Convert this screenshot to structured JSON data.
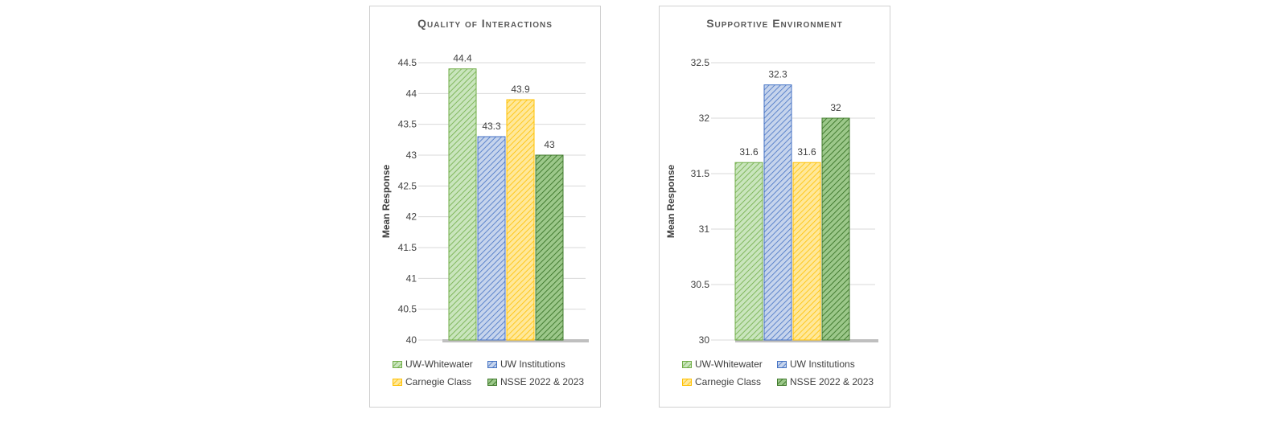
{
  "series_styles": [
    {
      "name": "UW-Whitewater",
      "fill": "#c9e5bd",
      "stroke": "#70ad47",
      "hatch": "#70ad47"
    },
    {
      "name": "UW Institutions",
      "fill": "#c6d4ec",
      "stroke": "#4472c4",
      "hatch": "#4472c4"
    },
    {
      "name": "Carnegie Class",
      "fill": "#ffe89a",
      "stroke": "#ffc000",
      "hatch": "#ffc000"
    },
    {
      "name": "NSSE 2022 & 2023",
      "fill": "#9cc88a",
      "stroke": "#3f7a2b",
      "hatch": "#2f6b1d"
    }
  ],
  "chart_data": [
    {
      "type": "bar",
      "title": "Quality of Interactions",
      "ylabel": "Mean Response",
      "xlabel": "",
      "ylim": [
        40,
        44.5
      ],
      "yticks": [
        40,
        40.5,
        41,
        41.5,
        42,
        42.5,
        43,
        43.5,
        44,
        44.5
      ],
      "ytick_labels": [
        "40",
        "40.5",
        "41",
        "41.5",
        "42",
        "42.5",
        "43",
        "43.5",
        "44",
        "44.5"
      ],
      "grid": true,
      "legend": "bottom",
      "categories": [
        "UW-Whitewater",
        "UW Institutions",
        "Carnegie Class",
        "NSSE 2022 & 2023"
      ],
      "values": [
        44.4,
        43.3,
        43.9,
        43
      ],
      "value_labels": [
        "44.4",
        "43.3",
        "43.9",
        "43"
      ]
    },
    {
      "type": "bar",
      "title": "Supportive Environment",
      "ylabel": "Mean Response",
      "xlabel": "",
      "ylim": [
        30,
        32.5
      ],
      "yticks": [
        30,
        30.5,
        31,
        31.5,
        32,
        32.5
      ],
      "ytick_labels": [
        "30",
        "30.5",
        "31",
        "31.5",
        "32",
        "32.5"
      ],
      "grid": true,
      "legend": "bottom",
      "categories": [
        "UW-Whitewater",
        "UW Institutions",
        "Carnegie Class",
        "NSSE 2022 & 2023"
      ],
      "values": [
        31.6,
        32.3,
        31.6,
        32
      ],
      "value_labels": [
        "31.6",
        "32.3",
        "31.6",
        "32"
      ]
    }
  ]
}
